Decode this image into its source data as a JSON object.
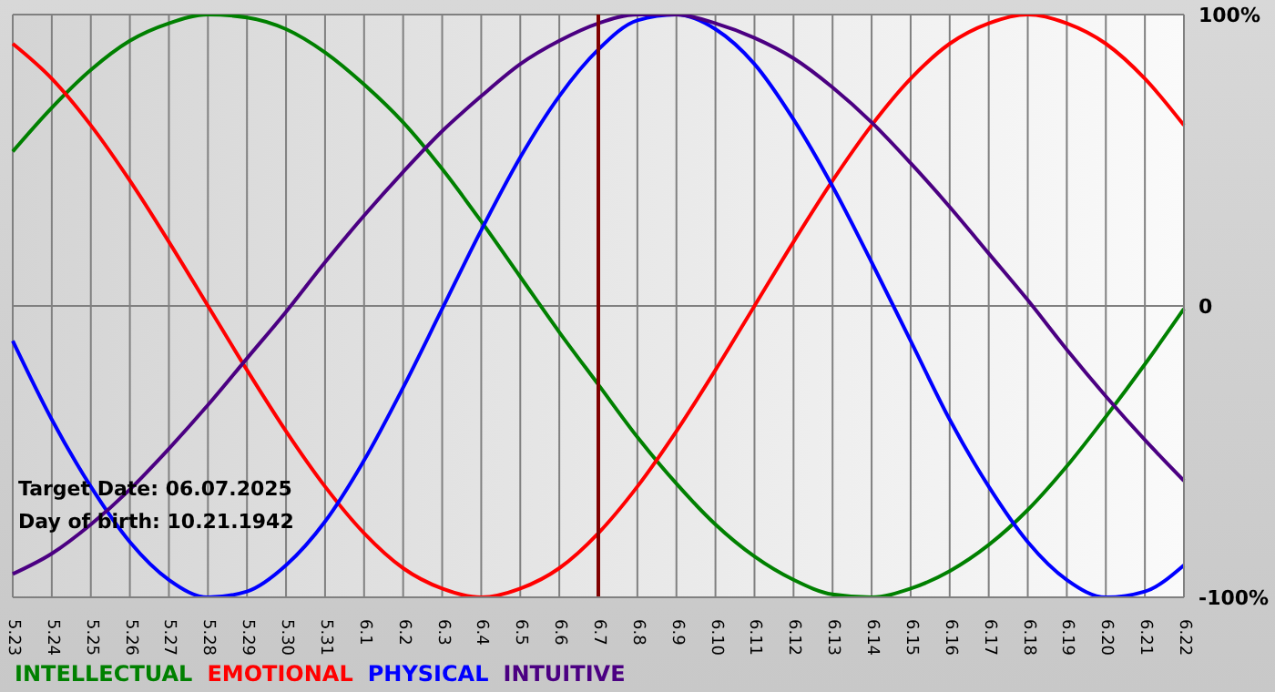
{
  "chart_data": {
    "type": "line",
    "categories": [
      "5.23",
      "5.24",
      "5.25",
      "5.26",
      "5.27",
      "5.28",
      "5.29",
      "5.30",
      "5.31",
      "6.1",
      "6.2",
      "6.3",
      "6.4",
      "6.5",
      "6.6",
      "6.7",
      "6.8",
      "6.9",
      "6.10",
      "6.11",
      "6.12",
      "6.13",
      "6.14",
      "6.15",
      "6.16",
      "6.17",
      "6.18",
      "6.19",
      "6.20",
      "6.21",
      "6.22"
    ],
    "series": [
      {
        "name": "INTELLECTUAL",
        "color": "#008000",
        "values": [
          53,
          68,
          81,
          91,
          97,
          100,
          99,
          95,
          87,
          76,
          63,
          47,
          29,
          10,
          -9,
          -27,
          -45,
          -61,
          -75,
          -86,
          -94,
          -99,
          -100,
          -97,
          -91,
          -82,
          -70,
          -55,
          -38,
          -20,
          -1
        ]
      },
      {
        "name": "EMOTIONAL",
        "color": "#ff0000",
        "values": [
          90,
          78,
          62,
          43,
          22,
          0,
          -22,
          -43,
          -62,
          -78,
          -90,
          -97,
          -100,
          -97,
          -90,
          -78,
          -62,
          -43,
          -22,
          0,
          22,
          43,
          62,
          78,
          90,
          97,
          100,
          97,
          90,
          78,
          62
        ]
      },
      {
        "name": "PHYSICAL",
        "color": "#0000ff",
        "values": [
          -12,
          -39,
          -62,
          -81,
          -94,
          -100,
          -98,
          -89,
          -74,
          -53,
          -28,
          -1,
          26,
          51,
          72,
          88,
          98,
          100,
          95,
          83,
          64,
          41,
          15,
          -12,
          -39,
          -62,
          -81,
          -94,
          -100,
          -98,
          -89
        ]
      },
      {
        "name": "INTUITIVE",
        "color": "#4b0082",
        "values": [
          -92,
          -85,
          -75,
          -63,
          -49,
          -34,
          -18,
          -2,
          15,
          31,
          46,
          60,
          72,
          83,
          91,
          97,
          100,
          100,
          97,
          92,
          85,
          75,
          63,
          49,
          34,
          18,
          2,
          -15,
          -31,
          -46,
          -60
        ]
      }
    ],
    "ylim": [
      -100,
      100
    ],
    "yticks": [
      {
        "value": -100,
        "label": "-100%"
      },
      0,
      {
        "value": 100,
        "label": "100%"
      }
    ],
    "grid": true,
    "legend": "bottom left",
    "ref_lines": [
      {
        "axis": "x",
        "value": "6.7",
        "color": "#800000"
      }
    ],
    "annotations": [
      "Target Date: 06.07.2025",
      "Day of birth: 10.21.1942"
    ]
  }
}
